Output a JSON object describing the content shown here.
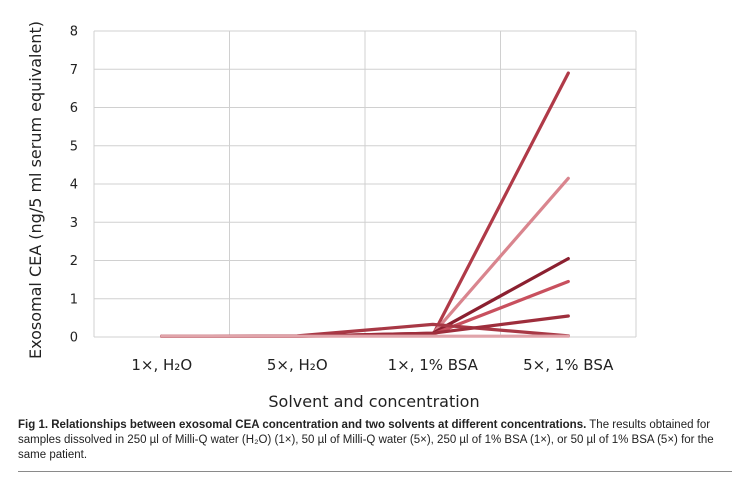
{
  "chart_data": {
    "type": "line",
    "categories": [
      "1×, H₂O",
      "5×, H₂O",
      "1×, 1% BSA",
      "5×, 1% BSA"
    ],
    "ylabel": "Exosomal CEA  (ng/5 ml serum equivalent)",
    "xlabel": "Solvent and concentration",
    "ylim": [
      0,
      8
    ],
    "yticks": [
      "0",
      "1",
      "2",
      "3",
      "4",
      "5",
      "6",
      "7",
      "8"
    ],
    "grid": true,
    "series": [
      {
        "values": [
          0.02,
          0.02,
          0.05,
          6.9
        ],
        "color": "#b03a48"
      },
      {
        "values": [
          0.02,
          0.02,
          0.08,
          4.15
        ],
        "color": "#d9858e"
      },
      {
        "values": [
          0.02,
          0.02,
          0.1,
          2.05
        ],
        "color": "#8b2030"
      },
      {
        "values": [
          0.02,
          0.02,
          0.07,
          1.45
        ],
        "color": "#c8505e"
      },
      {
        "values": [
          0.02,
          0.03,
          0.33,
          0.03
        ],
        "color": "#a83845"
      },
      {
        "values": [
          0.02,
          0.02,
          0.1,
          0.55
        ],
        "color": "#9e2e3c"
      },
      {
        "values": [
          0.02,
          0.02,
          0.02,
          0.02
        ],
        "color": "#e0a4aa"
      }
    ]
  },
  "caption": {
    "bold": "Fig 1. Relationships between exosomal CEA concentration and two solvents at different concentrations.",
    "text": " The results obtained for samples dissolved in 250 µl of Milli-Q water (H₂O) (1×), 50 µl of Milli-Q water (5×), 250 µl of 1% BSA (1×), or 50 µl of 1% BSA (5×) for the same patient."
  }
}
